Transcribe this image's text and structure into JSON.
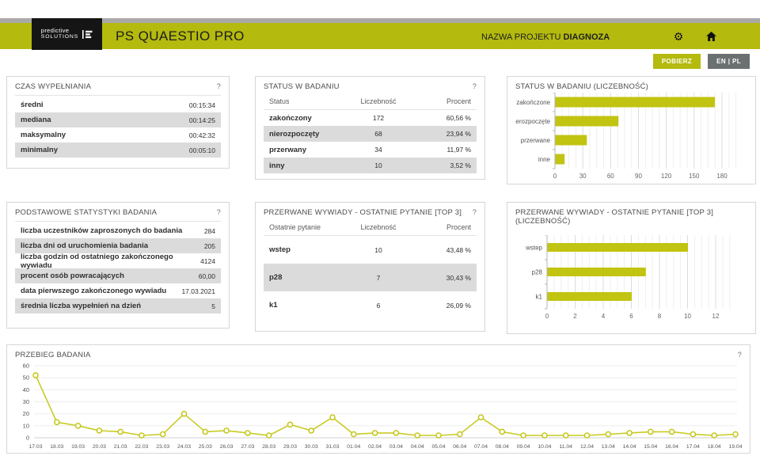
{
  "header": {
    "logo_line1": "predictive",
    "logo_line2": "SOLUTIONS",
    "app_title": "PS QUAESTIO PRO",
    "project_label": "NAZWA PROJEKTU",
    "project_name": "DIAGNOZA"
  },
  "toolbar": {
    "download_label": "POBIERZ",
    "language_label": "EN | PL"
  },
  "colors": {
    "accent": "#b4ba0e",
    "bar_fill": "#c1c410",
    "line_stroke": "#c8cb25",
    "marker_fill": "#fdfcf2",
    "row_alt": "#dbdbdb",
    "button_gray": "#6b7071",
    "strip_gray": "#a9a9a9"
  },
  "panels": {
    "czas": {
      "title": "CZAS WYPEŁNIANIA",
      "help": "?",
      "rows": [
        {
          "label": "średni",
          "value": "00:15:34"
        },
        {
          "label": "mediana",
          "value": "00:14:25"
        },
        {
          "label": "maksymalny",
          "value": "00:42:32"
        },
        {
          "label": "minimalny",
          "value": "00:05:10"
        }
      ]
    },
    "status": {
      "title": "STATUS W BADANIU",
      "help": "?",
      "columns": [
        "Status",
        "Liczebność",
        "Procent"
      ],
      "rows": [
        {
          "label": "zakończony",
          "count": "172",
          "percent": "60,56 %"
        },
        {
          "label": "nierozpoczęty",
          "count": "68",
          "percent": "23,94 %"
        },
        {
          "label": "przerwany",
          "count": "34",
          "percent": "11,97 %"
        },
        {
          "label": "inny",
          "count": "10",
          "percent": "3,52 %"
        }
      ]
    },
    "podstawowe": {
      "title": "PODSTAWOWE STATYSTYKI BADANIA",
      "help": "?",
      "rows": [
        {
          "label": "liczba uczestników zaproszonych do badania",
          "value": "284"
        },
        {
          "label": "liczba dni od uruchomienia badania",
          "value": "205"
        },
        {
          "label": "liczba godzin od ostatniego zakończonego wywiadu",
          "value": "4124"
        },
        {
          "label": "procent osób powracających",
          "value": "60,00"
        },
        {
          "label": "data pierwszego zakończonego wywiadu",
          "value": "17.03.2021"
        },
        {
          "label": "średnia liczba wypełnień na dzień",
          "value": "5"
        }
      ]
    },
    "przerwane": {
      "title": "PRZERWANE WYWIADY - OSTATNIE PYTANIE [TOP 3]",
      "help": "?",
      "columns": [
        "Ostatnie pytanie",
        "Liczebność",
        "Procent"
      ],
      "rows": [
        {
          "label": "wstep",
          "count": "10",
          "percent": "43,48 %"
        },
        {
          "label": "p28",
          "count": "7",
          "percent": "30,43 %"
        },
        {
          "label": "k1",
          "count": "6",
          "percent": "26,09 %"
        }
      ]
    }
  },
  "chart_data": [
    {
      "type": "bar",
      "orientation": "horizontal",
      "title": "STATUS W BADANIU (LICZEBNOŚĆ)",
      "categories": [
        "zakończone",
        "nierozpoczęte",
        "przerwane",
        "inne"
      ],
      "values": [
        172,
        68,
        34,
        10
      ],
      "xlim": [
        0,
        195
      ],
      "xticks": [
        0,
        30,
        60,
        90,
        120,
        150,
        180
      ],
      "minor_step": 7.5,
      "major_step": 30,
      "grid": true,
      "legend": "none"
    },
    {
      "type": "bar",
      "orientation": "horizontal",
      "title": "PRZERWANE WYWIADY - OSTATNIE PYTANIE [TOP 3] (LICZEBNOŚĆ)",
      "categories": [
        "wstep",
        "p28",
        "k1"
      ],
      "values": [
        10,
        7,
        6
      ],
      "xlim": [
        0,
        13
      ],
      "xticks": [
        0,
        2,
        4,
        6,
        8,
        10,
        12
      ],
      "minor_step": 0.5,
      "major_step": 2,
      "grid": true,
      "legend": "none"
    },
    {
      "type": "line",
      "title": "PRZEBIEG BADANIA",
      "help": "?",
      "x": [
        "17.03",
        "18.03",
        "19.03",
        "20.03",
        "21.03",
        "22.03",
        "23.03",
        "24.03",
        "25.03",
        "26.03",
        "27.03",
        "28.03",
        "29.03",
        "30.03",
        "31.03",
        "01.04",
        "02.04",
        "03.04",
        "04.04",
        "05.04",
        "06.04",
        "07.04",
        "08.04",
        "09.04",
        "10.04",
        "11.04",
        "12.04",
        "13.04",
        "14.04",
        "15.04",
        "16.04",
        "17.04",
        "18.04",
        "19.04"
      ],
      "values": [
        52,
        13,
        10,
        6,
        5,
        2,
        3,
        20,
        5,
        6,
        4,
        2,
        11,
        6,
        17,
        3,
        4,
        4,
        2,
        2,
        3,
        17,
        5,
        2,
        2,
        2,
        2,
        3,
        4,
        5,
        5,
        3,
        2,
        3
      ],
      "ylim": [
        0,
        60
      ],
      "yticks": [
        0,
        10,
        20,
        30,
        40,
        50,
        60
      ],
      "grid": true,
      "legend": "none"
    }
  ]
}
